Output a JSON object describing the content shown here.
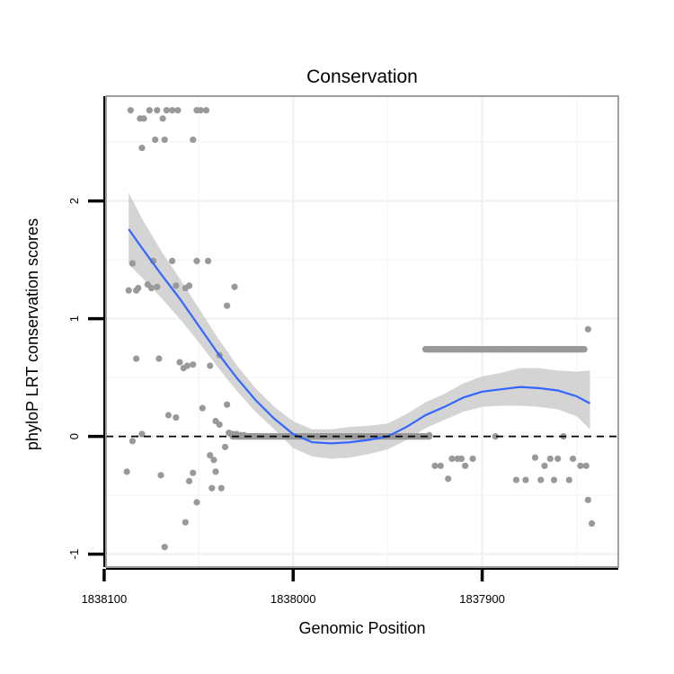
{
  "chart_data": {
    "type": "scatter",
    "title": "Conservation",
    "xlabel": "Genomic Position",
    "ylabel": "phyloP LRT conservation scores",
    "xlim": [
      1838099,
      1837828
    ],
    "ylim": [
      -1.11,
      2.89
    ],
    "x_ticks": [
      1838100,
      1838000,
      1837900
    ],
    "x_tick_labels": [
      "1838100",
      "1838000",
      "1837900"
    ],
    "y_ticks": [
      -1,
      0,
      1,
      2
    ],
    "y_tick_labels": [
      "-1",
      "0",
      "1",
      "2"
    ],
    "x_reversed": true,
    "grid": true,
    "reference_line": {
      "y": 0,
      "style": "dashed"
    },
    "colors": {
      "points": "#999999",
      "smooth": "#3366ff",
      "band": "#cccccc",
      "frame": "#808080",
      "ref_line": "#000000"
    },
    "points": [
      [
        1838086,
        2.77
      ],
      [
        1838081,
        2.7
      ],
      [
        1838079,
        2.7
      ],
      [
        1838076,
        2.77
      ],
      [
        1838072,
        2.77
      ],
      [
        1838069,
        2.7
      ],
      [
        1838067,
        2.77
      ],
      [
        1838064,
        2.77
      ],
      [
        1838061,
        2.77
      ],
      [
        1838051,
        2.77
      ],
      [
        1838049,
        2.77
      ],
      [
        1838046,
        2.77
      ],
      [
        1838080,
        2.45
      ],
      [
        1838073,
        2.52
      ],
      [
        1838068,
        2.52
      ],
      [
        1838053,
        2.52
      ],
      [
        1838087,
        1.24
      ],
      [
        1838085,
        1.47
      ],
      [
        1838083,
        1.24
      ],
      [
        1838082,
        1.26
      ],
      [
        1838077,
        1.29
      ],
      [
        1838075,
        1.26
      ],
      [
        1838074,
        1.49
      ],
      [
        1838072,
        1.27
      ],
      [
        1838064,
        1.49
      ],
      [
        1838062,
        1.28
      ],
      [
        1838057,
        1.26
      ],
      [
        1838055,
        1.28
      ],
      [
        1838051,
        1.49
      ],
      [
        1838045,
        1.49
      ],
      [
        1838031,
        1.27
      ],
      [
        1838035,
        1.11
      ],
      [
        1838083,
        0.66
      ],
      [
        1838071,
        0.66
      ],
      [
        1838060,
        0.63
      ],
      [
        1838058,
        0.58
      ],
      [
        1838056,
        0.6
      ],
      [
        1838053,
        0.61
      ],
      [
        1838044,
        0.6
      ],
      [
        1838039,
        0.69
      ],
      [
        1838066,
        0.18
      ],
      [
        1838062,
        0.16
      ],
      [
        1838048,
        0.24
      ],
      [
        1838041,
        0.13
      ],
      [
        1838039,
        0.1
      ],
      [
        1838035,
        0.27
      ],
      [
        1838034,
        0.03
      ],
      [
        1838033,
        0.02
      ],
      [
        1838032,
        0.02
      ],
      [
        1838030,
        0.02
      ],
      [
        1838028,
        0.01
      ],
      [
        1838026,
        0.01
      ],
      [
        1838080,
        0.02
      ],
      [
        1838085,
        -0.04
      ],
      [
        1838088,
        -0.3
      ],
      [
        1838070,
        -0.33
      ],
      [
        1838055,
        -0.38
      ],
      [
        1838053,
        -0.31
      ],
      [
        1838051,
        -0.56
      ],
      [
        1838044,
        -0.16
      ],
      [
        1838042,
        -0.2
      ],
      [
        1838041,
        -0.3
      ],
      [
        1838043,
        -0.44
      ],
      [
        1838038,
        -0.44
      ],
      [
        1838036,
        -0.09
      ],
      [
        1838068,
        -0.94
      ],
      [
        1838057,
        -0.73
      ],
      [
        1837928,
        0.01
      ],
      [
        1837925,
        -0.25
      ],
      [
        1837922,
        -0.25
      ],
      [
        1837918,
        -0.36
      ],
      [
        1837916,
        -0.19
      ],
      [
        1837913,
        -0.19
      ],
      [
        1837911,
        -0.19
      ],
      [
        1837909,
        -0.25
      ],
      [
        1837905,
        -0.19
      ],
      [
        1837893,
        0
      ],
      [
        1837882,
        -0.37
      ],
      [
        1837877,
        -0.37
      ],
      [
        1837872,
        -0.18
      ],
      [
        1837869,
        -0.37
      ],
      [
        1837867,
        -0.25
      ],
      [
        1837864,
        -0.19
      ],
      [
        1837862,
        -0.37
      ],
      [
        1837860,
        -0.19
      ],
      [
        1837857,
        0
      ],
      [
        1837854,
        -0.37
      ],
      [
        1837852,
        -0.19
      ],
      [
        1837848,
        -0.25
      ],
      [
        1837845,
        -0.25
      ],
      [
        1837844,
        0.91
      ],
      [
        1837844,
        -0.54
      ],
      [
        1837842,
        -0.74
      ]
    ],
    "dense_clusters": [
      {
        "x_from": 1838032,
        "x_to": 1837928,
        "y": 0,
        "count": 260
      },
      {
        "x_from": 1837930,
        "x_to": 1837846,
        "y": 0.74,
        "count": 240
      }
    ],
    "smooth": {
      "x": [
        1838087,
        1838080,
        1838070,
        1838060,
        1838050,
        1838040,
        1838030,
        1838020,
        1838010,
        1838000,
        1837990,
        1837980,
        1837970,
        1837960,
        1837950,
        1837940,
        1837930,
        1837920,
        1837910,
        1837900,
        1837890,
        1837880,
        1837870,
        1837860,
        1837850,
        1837843
      ],
      "y": [
        1.76,
        1.6,
        1.38,
        1.17,
        0.94,
        0.71,
        0.5,
        0.31,
        0.15,
        0.02,
        -0.05,
        -0.06,
        -0.05,
        -0.03,
        0.0,
        0.08,
        0.18,
        0.25,
        0.33,
        0.38,
        0.4,
        0.42,
        0.41,
        0.39,
        0.34,
        0.28
      ],
      "lower": [
        1.46,
        1.35,
        1.18,
        1.0,
        0.8,
        0.59,
        0.39,
        0.21,
        0.06,
        -0.1,
        -0.17,
        -0.19,
        -0.18,
        -0.15,
        -0.11,
        -0.03,
        0.07,
        0.14,
        0.21,
        0.25,
        0.26,
        0.26,
        0.25,
        0.23,
        0.17,
        0.06
      ],
      "upper": [
        2.07,
        1.85,
        1.58,
        1.34,
        1.09,
        0.84,
        0.61,
        0.41,
        0.25,
        0.13,
        0.06,
        0.06,
        0.08,
        0.09,
        0.11,
        0.19,
        0.29,
        0.36,
        0.45,
        0.51,
        0.54,
        0.58,
        0.58,
        0.56,
        0.55,
        0.56
      ]
    }
  }
}
